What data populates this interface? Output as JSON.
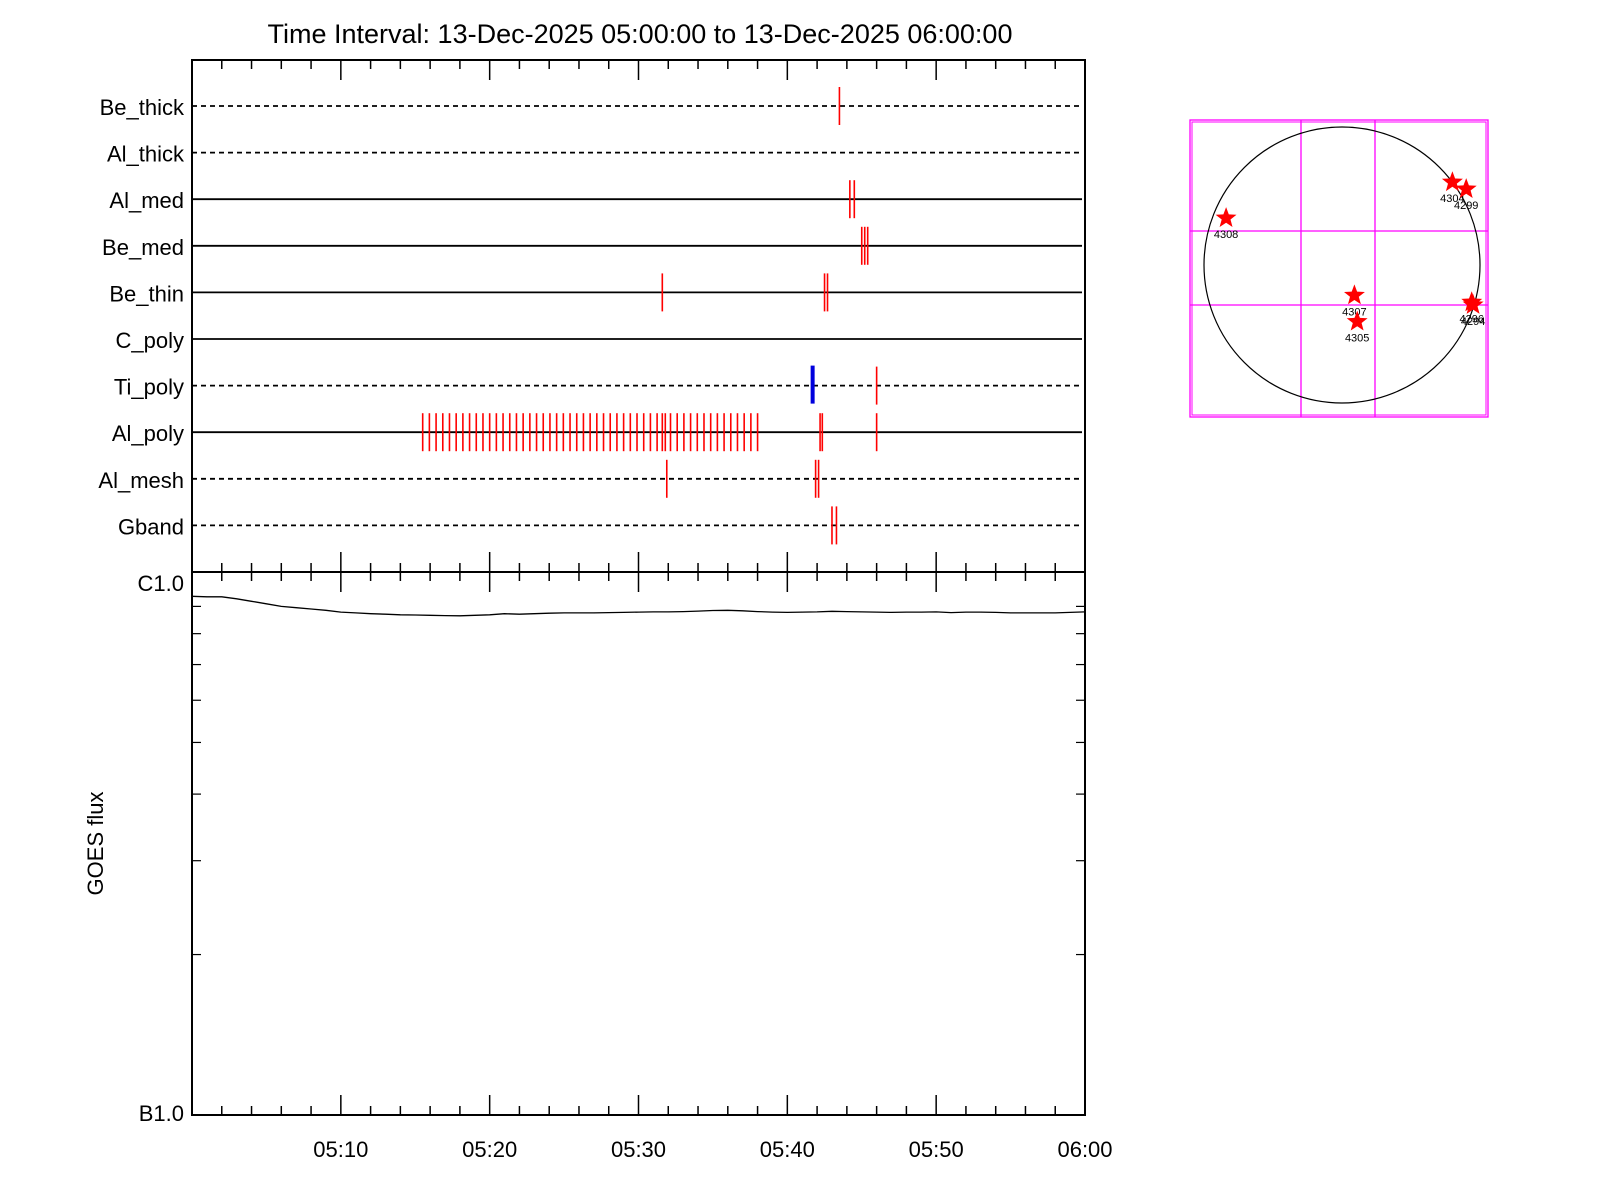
{
  "title": "Time Interval: 13-Dec-2025 05:00:00 to 13-Dec-2025 06:00:00",
  "colors": {
    "axis": "#000000",
    "event": "#ff0000",
    "highlight": "#0000dd",
    "grid_box": "#ff00ff",
    "disk": "#000000",
    "star": "#ff0000"
  },
  "chart_data": [
    {
      "type": "scatter",
      "subtype": "event-timeline",
      "x_unit": "minutes after 05:00",
      "xlim": [
        0,
        60
      ],
      "rows": [
        {
          "name": "Be_thick",
          "line": "dashed",
          "events": [
            43.5
          ]
        },
        {
          "name": "Al_thick",
          "line": "dashed",
          "events": []
        },
        {
          "name": "Al_med",
          "line": "solid",
          "events": [
            44.2,
            44.5
          ]
        },
        {
          "name": "Be_med",
          "line": "solid",
          "events": [
            45.0,
            45.2,
            45.4
          ]
        },
        {
          "name": "Be_thin",
          "line": "solid",
          "events": [
            31.6,
            42.5,
            42.7
          ]
        },
        {
          "name": "C_poly",
          "line": "solid",
          "events": []
        },
        {
          "name": "Ti_poly",
          "line": "dashed",
          "events": [
            46.0
          ],
          "highlight_events": [
            41.7
          ]
        },
        {
          "name": "Al_poly",
          "line": "solid",
          "events": [
            15.5,
            15.95,
            16.4,
            16.85,
            17.3,
            17.75,
            18.2,
            18.65,
            19.1,
            19.55,
            20.0,
            20.45,
            20.9,
            21.35,
            21.8,
            22.25,
            22.7,
            23.15,
            23.6,
            24.05,
            24.5,
            24.95,
            25.4,
            25.85,
            26.3,
            26.75,
            27.2,
            27.65,
            28.1,
            28.55,
            29.0,
            29.45,
            29.9,
            30.35,
            30.8,
            31.25,
            31.6,
            31.8,
            32.15,
            32.6,
            33.05,
            33.5,
            33.95,
            34.4,
            34.85,
            35.3,
            35.75,
            36.2,
            36.65,
            37.1,
            37.55,
            38.0,
            42.2,
            42.35,
            46.0
          ]
        },
        {
          "name": "Al_mesh",
          "line": "dashed",
          "events": [
            31.9,
            41.9,
            42.1
          ]
        },
        {
          "name": "Gband",
          "line": "dashed",
          "events": [
            43.0,
            43.3
          ]
        }
      ]
    },
    {
      "type": "line",
      "ylabel": "GOES flux",
      "y_scale": "log",
      "ylim": [
        1e-07,
        1e-06
      ],
      "y_tick_labels": [
        "C1.0",
        "B1.0"
      ],
      "xlim": [
        0,
        60
      ],
      "x_tick_labels": [
        "05:10",
        "05:20",
        "05:30",
        "05:40",
        "05:50",
        "06:00"
      ],
      "x_tick_values": [
        10,
        20,
        30,
        40,
        50,
        60
      ],
      "x": [
        0,
        1,
        2,
        3,
        4,
        5,
        6,
        7,
        8,
        9,
        10,
        11,
        12,
        13,
        14,
        15,
        16,
        17,
        18,
        19,
        20,
        21,
        22,
        23,
        24,
        25,
        26,
        27,
        28,
        29,
        30,
        31,
        32,
        33,
        34,
        35,
        36,
        37,
        38,
        39,
        40,
        41,
        42,
        43,
        44,
        45,
        46,
        47,
        48,
        49,
        50,
        51,
        52,
        53,
        54,
        55,
        56,
        57,
        58,
        59,
        60
      ],
      "y": [
        9.4e-07,
        9.38e-07,
        9.38e-07,
        9.3e-07,
        9.2e-07,
        9.1e-07,
        9e-07,
        8.95e-07,
        8.9e-07,
        8.85e-07,
        8.78e-07,
        8.75e-07,
        8.72e-07,
        8.7e-07,
        8.68e-07,
        8.67e-07,
        8.66e-07,
        8.65e-07,
        8.64e-07,
        8.66e-07,
        8.68e-07,
        8.72e-07,
        8.7e-07,
        8.72e-07,
        8.74e-07,
        8.75e-07,
        8.75e-07,
        8.75e-07,
        8.76e-07,
        8.77e-07,
        8.78e-07,
        8.79e-07,
        8.79e-07,
        8.8e-07,
        8.82e-07,
        8.84e-07,
        8.85e-07,
        8.83e-07,
        8.8e-07,
        8.78e-07,
        8.77e-07,
        8.78e-07,
        8.79e-07,
        8.81e-07,
        8.8e-07,
        8.79e-07,
        8.78e-07,
        8.77e-07,
        8.78e-07,
        8.78e-07,
        8.79e-07,
        8.76e-07,
        8.78e-07,
        8.78e-07,
        8.77e-07,
        8.75e-07,
        8.75e-07,
        8.75e-07,
        8.75e-07,
        8.77e-07,
        8.79e-07
      ]
    },
    {
      "type": "scatter",
      "subtype": "solar-disk-map",
      "points": [
        {
          "label": "4308",
          "x": -0.84,
          "y": 0.34
        },
        {
          "label": "4307",
          "x": 0.09,
          "y": -0.22
        },
        {
          "label": "4305",
          "x": 0.11,
          "y": -0.41
        },
        {
          "label": "4304",
          "x": 0.8,
          "y": 0.6
        },
        {
          "label": "4299",
          "x": 0.9,
          "y": 0.55
        },
        {
          "label": "4296",
          "x": 0.94,
          "y": -0.27
        },
        {
          "label": "4294",
          "x": 0.95,
          "y": -0.29
        }
      ]
    }
  ]
}
